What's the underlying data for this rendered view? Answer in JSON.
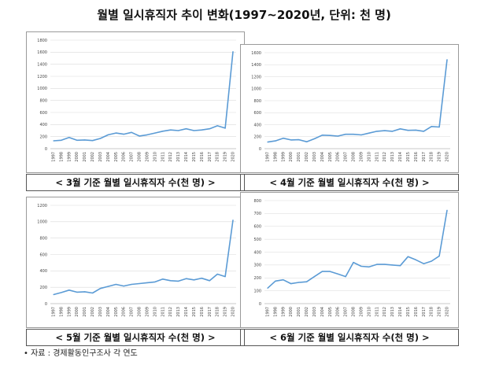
{
  "page": {
    "title": "월별 일시휴직자 추이 변화(1997~2020년, 단위: 천 명)",
    "source": "• 자료 : 경제활동인구조사 각 연도"
  },
  "colors": {
    "line": "#5b9bd5",
    "grid": "#d9d9d9",
    "axis": "#bfbfbf"
  },
  "chart_data": [
    {
      "type": "line",
      "caption": "< 3월 기준 월별 일시휴직자 수(천 명) >",
      "x": [
        "1997",
        "1998",
        "1999",
        "2000",
        "2001",
        "2002",
        "2003",
        "2004",
        "2005",
        "2006",
        "2007",
        "2008",
        "2009",
        "2010",
        "2011",
        "2012",
        "2013",
        "2014",
        "2015",
        "2016",
        "2017",
        "2018",
        "2019",
        "2020"
      ],
      "series": [
        {
          "values": [
            130,
            140,
            185,
            140,
            145,
            135,
            170,
            230,
            260,
            240,
            270,
            210,
            230,
            260,
            290,
            310,
            300,
            330,
            300,
            310,
            330,
            380,
            340,
            1610
          ]
        }
      ],
      "yticks": [
        "0",
        "200",
        "400",
        "600",
        "800",
        "1000",
        "1200",
        "1400",
        "1600",
        "1800"
      ],
      "ylim": [
        0,
        1800
      ],
      "grid": true
    },
    {
      "type": "line",
      "caption": "< 4월 기준 월별 일시휴직자 수(천 명) >",
      "x": [
        "1997",
        "1998",
        "1999",
        "2000",
        "2001",
        "2002",
        "2003",
        "2004",
        "2005",
        "2006",
        "2007",
        "2008",
        "2009",
        "2010",
        "2011",
        "2012",
        "2013",
        "2014",
        "2015",
        "2016",
        "2017",
        "2018",
        "2019",
        "2020"
      ],
      "series": [
        {
          "values": [
            110,
            130,
            175,
            145,
            150,
            115,
            165,
            225,
            220,
            210,
            240,
            240,
            230,
            260,
            290,
            300,
            290,
            330,
            305,
            310,
            290,
            370,
            360,
            1485
          ]
        }
      ],
      "yticks": [
        "0",
        "200",
        "400",
        "600",
        "800",
        "1000",
        "1200",
        "1400",
        "1600"
      ],
      "ylim": [
        0,
        1600
      ],
      "grid": true
    },
    {
      "type": "line",
      "caption": "< 5월 기준 월별 일시휴직자 수(천 명) >",
      "x": [
        "1997",
        "1998",
        "1999",
        "2000",
        "2001",
        "2002",
        "2003",
        "2004",
        "2005",
        "2006",
        "2007",
        "2008",
        "2009",
        "2010",
        "2011",
        "2012",
        "2013",
        "2014",
        "2015",
        "2016",
        "2017",
        "2018",
        "2019",
        "2020"
      ],
      "series": [
        {
          "values": [
            110,
            135,
            165,
            140,
            145,
            130,
            185,
            210,
            235,
            215,
            235,
            245,
            255,
            265,
            300,
            280,
            275,
            305,
            290,
            310,
            280,
            360,
            330,
            1020
          ]
        }
      ],
      "yticks": [
        "0",
        "200",
        "400",
        "600",
        "800",
        "1000",
        "1200"
      ],
      "ylim": [
        0,
        1200
      ],
      "grid": true
    },
    {
      "type": "line",
      "caption": "< 6월 기준 월별 일시휴직자 수(천 명) >",
      "x": [
        "1997",
        "1998",
        "1999",
        "2000",
        "2001",
        "2002",
        "2003",
        "2004",
        "2005",
        "2006",
        "2007",
        "2008",
        "2009",
        "2010",
        "2011",
        "2012",
        "2013",
        "2014",
        "2015",
        "2016",
        "2017",
        "2018",
        "2019",
        "2020"
      ],
      "series": [
        {
          "values": [
            120,
            175,
            185,
            155,
            165,
            170,
            210,
            250,
            250,
            230,
            210,
            320,
            290,
            285,
            305,
            305,
            300,
            295,
            365,
            340,
            310,
            330,
            370,
            725
          ]
        }
      ],
      "yticks": [
        "0",
        "100",
        "200",
        "300",
        "400",
        "500",
        "600",
        "700",
        "800"
      ],
      "ylim": [
        0,
        800
      ],
      "grid": true
    }
  ]
}
